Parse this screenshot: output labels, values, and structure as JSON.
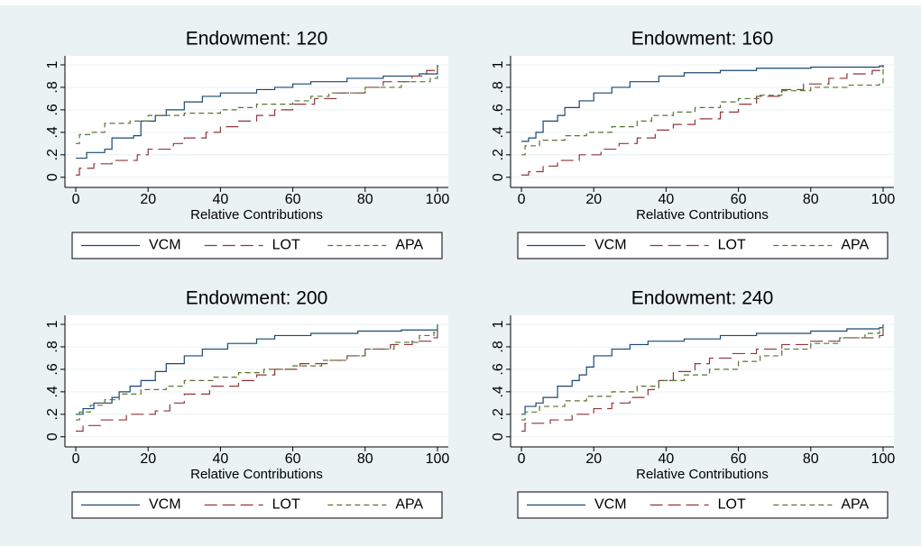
{
  "chart_data": [
    {
      "type": "line",
      "title": "Endowment: 120",
      "xlabel": "Relative Contributions",
      "steps": true,
      "grid": true,
      "legend": "bottom",
      "xlim": [
        -3,
        103
      ],
      "ylim": [
        -0.09,
        1.08
      ],
      "xticks": [
        0,
        20,
        40,
        60,
        80,
        100
      ],
      "yticks": [
        0,
        {
          "value": 0.2,
          "label": ".2"
        },
        {
          "value": 0.4,
          "label": ".4"
        },
        {
          "value": 0.6,
          "label": ".6"
        },
        {
          "value": 0.8,
          "label": ".8"
        },
        1
      ],
      "series": [
        {
          "name": "VCM",
          "color": "#1a476f",
          "linestyle": "solid",
          "x": [
            0,
            3,
            8,
            10,
            16,
            18,
            22,
            25,
            30,
            35,
            40,
            50,
            55,
            60,
            65,
            75,
            85,
            95,
            100
          ],
          "values": [
            0.17,
            0.22,
            0.25,
            0.35,
            0.37,
            0.5,
            0.55,
            0.6,
            0.67,
            0.72,
            0.75,
            0.78,
            0.8,
            0.83,
            0.85,
            0.88,
            0.9,
            0.92,
            1
          ]
        },
        {
          "name": "LOT",
          "color": "#90353b",
          "linestyle": "longdash",
          "x": [
            0,
            1,
            5,
            10,
            17,
            20,
            27,
            30,
            36,
            40,
            45,
            50,
            55,
            60,
            66,
            72,
            80,
            85,
            93,
            97,
            100
          ],
          "values": [
            0.02,
            0.08,
            0.12,
            0.15,
            0.2,
            0.25,
            0.3,
            0.35,
            0.4,
            0.45,
            0.5,
            0.55,
            0.6,
            0.65,
            0.7,
            0.75,
            0.8,
            0.85,
            0.9,
            0.95,
            1
          ]
        },
        {
          "name": "APA",
          "color": "#55752f",
          "linestyle": "dash",
          "x": [
            0,
            1,
            4,
            8,
            15,
            20,
            30,
            40,
            45,
            50,
            60,
            65,
            70,
            80,
            90,
            98,
            100
          ],
          "values": [
            0.3,
            0.38,
            0.4,
            0.48,
            0.5,
            0.55,
            0.57,
            0.6,
            0.62,
            0.65,
            0.68,
            0.72,
            0.75,
            0.8,
            0.85,
            0.88,
            1
          ]
        }
      ]
    },
    {
      "type": "line",
      "title": "Endowment: 160",
      "xlabel": "Relative Contributions",
      "steps": true,
      "grid": true,
      "legend": "bottom",
      "xlim": [
        -3,
        103
      ],
      "ylim": [
        -0.09,
        1.08
      ],
      "xticks": [
        0,
        20,
        40,
        60,
        80,
        100
      ],
      "yticks": [
        0,
        {
          "value": 0.2,
          "label": ".2"
        },
        {
          "value": 0.4,
          "label": ".4"
        },
        {
          "value": 0.6,
          "label": ".6"
        },
        {
          "value": 0.8,
          "label": ".8"
        },
        1
      ],
      "series": [
        {
          "name": "VCM",
          "color": "#1a476f",
          "linestyle": "solid",
          "x": [
            0,
            2,
            4,
            6,
            10,
            12,
            16,
            20,
            25,
            30,
            38,
            45,
            55,
            65,
            80,
            99,
            100
          ],
          "values": [
            0.32,
            0.35,
            0.4,
            0.5,
            0.55,
            0.62,
            0.68,
            0.75,
            0.8,
            0.85,
            0.9,
            0.93,
            0.95,
            0.97,
            0.98,
            0.99,
            1
          ]
        },
        {
          "name": "LOT",
          "color": "#90353b",
          "linestyle": "longdash",
          "x": [
            0,
            2,
            6,
            10,
            16,
            22,
            27,
            32,
            37,
            42,
            48,
            55,
            60,
            65,
            72,
            78,
            85,
            90,
            97,
            100
          ],
          "values": [
            0.02,
            0.05,
            0.1,
            0.15,
            0.2,
            0.25,
            0.3,
            0.35,
            0.42,
            0.47,
            0.52,
            0.58,
            0.65,
            0.72,
            0.78,
            0.83,
            0.88,
            0.92,
            0.95,
            1
          ]
        },
        {
          "name": "APA",
          "color": "#55752f",
          "linestyle": "dash",
          "x": [
            0,
            1,
            5,
            12,
            18,
            25,
            32,
            36,
            42,
            48,
            55,
            60,
            66,
            72,
            80,
            90,
            99,
            100
          ],
          "values": [
            0.2,
            0.28,
            0.33,
            0.37,
            0.4,
            0.45,
            0.5,
            0.55,
            0.58,
            0.62,
            0.67,
            0.7,
            0.73,
            0.77,
            0.8,
            0.82,
            0.84,
            1
          ]
        }
      ]
    },
    {
      "type": "line",
      "title": "Endowment: 200",
      "xlabel": "Relative Contributions",
      "steps": true,
      "grid": true,
      "legend": "bottom",
      "xlim": [
        -3,
        103
      ],
      "ylim": [
        -0.09,
        1.08
      ],
      "xticks": [
        0,
        20,
        40,
        60,
        80,
        100
      ],
      "yticks": [
        0,
        {
          "value": 0.2,
          "label": ".2"
        },
        {
          "value": 0.4,
          "label": ".4"
        },
        {
          "value": 0.6,
          "label": ".6"
        },
        {
          "value": 0.8,
          "label": ".8"
        },
        1
      ],
      "series": [
        {
          "name": "VCM",
          "color": "#1a476f",
          "linestyle": "solid",
          "x": [
            0,
            2,
            5,
            10,
            12,
            15,
            18,
            22,
            25,
            30,
            35,
            42,
            50,
            55,
            65,
            78,
            90,
            100
          ],
          "values": [
            0.2,
            0.25,
            0.3,
            0.35,
            0.4,
            0.45,
            0.5,
            0.58,
            0.65,
            0.72,
            0.78,
            0.83,
            0.87,
            0.9,
            0.92,
            0.94,
            0.95,
            1
          ]
        },
        {
          "name": "LOT",
          "color": "#90353b",
          "linestyle": "longdash",
          "x": [
            0,
            2,
            7,
            14,
            22,
            26,
            30,
            37,
            45,
            50,
            55,
            62,
            70,
            75,
            80,
            87,
            93,
            99,
            100
          ],
          "values": [
            0.05,
            0.1,
            0.15,
            0.2,
            0.23,
            0.3,
            0.38,
            0.45,
            0.5,
            0.55,
            0.6,
            0.65,
            0.68,
            0.72,
            0.78,
            0.82,
            0.85,
            0.88,
            1
          ]
        },
        {
          "name": "APA",
          "color": "#55752f",
          "linestyle": "dash",
          "x": [
            0,
            1,
            4,
            8,
            12,
            18,
            25,
            30,
            38,
            45,
            52,
            60,
            68,
            75,
            80,
            88,
            95,
            99,
            100
          ],
          "values": [
            0.15,
            0.22,
            0.28,
            0.33,
            0.38,
            0.42,
            0.45,
            0.5,
            0.53,
            0.57,
            0.6,
            0.63,
            0.68,
            0.72,
            0.78,
            0.84,
            0.9,
            0.93,
            1
          ]
        }
      ]
    },
    {
      "type": "line",
      "title": "Endowment: 240",
      "xlabel": "Relative Contributions",
      "steps": true,
      "grid": true,
      "legend": "bottom",
      "xlim": [
        -3,
        103
      ],
      "ylim": [
        -0.09,
        1.08
      ],
      "xticks": [
        0,
        20,
        40,
        60,
        80,
        100
      ],
      "yticks": [
        0,
        {
          "value": 0.2,
          "label": ".2"
        },
        {
          "value": 0.4,
          "label": ".4"
        },
        {
          "value": 0.6,
          "label": ".6"
        },
        {
          "value": 0.8,
          "label": ".8"
        },
        1
      ],
      "series": [
        {
          "name": "VCM",
          "color": "#1a476f",
          "linestyle": "solid",
          "x": [
            0,
            1,
            4,
            6,
            10,
            14,
            16,
            18,
            20,
            25,
            30,
            35,
            45,
            55,
            65,
            80,
            90,
            99,
            100
          ],
          "values": [
            0.2,
            0.27,
            0.3,
            0.35,
            0.45,
            0.5,
            0.55,
            0.62,
            0.72,
            0.78,
            0.82,
            0.85,
            0.87,
            0.9,
            0.92,
            0.94,
            0.96,
            0.97,
            1
          ]
        },
        {
          "name": "LOT",
          "color": "#90353b",
          "linestyle": "longdash",
          "x": [
            0,
            1,
            8,
            14,
            20,
            25,
            30,
            35,
            38,
            42,
            48,
            52,
            58,
            65,
            72,
            80,
            88,
            99,
            100
          ],
          "values": [
            0.05,
            0.12,
            0.15,
            0.2,
            0.25,
            0.3,
            0.35,
            0.42,
            0.5,
            0.58,
            0.65,
            0.7,
            0.74,
            0.78,
            0.82,
            0.85,
            0.88,
            0.9,
            1
          ]
        },
        {
          "name": "APA",
          "color": "#55752f",
          "linestyle": "dash",
          "x": [
            0,
            1,
            5,
            12,
            18,
            25,
            32,
            38,
            45,
            52,
            60,
            66,
            72,
            80,
            88,
            95,
            99,
            100
          ],
          "values": [
            0.15,
            0.22,
            0.27,
            0.32,
            0.36,
            0.4,
            0.45,
            0.5,
            0.55,
            0.6,
            0.67,
            0.72,
            0.78,
            0.83,
            0.88,
            0.92,
            0.94,
            1
          ]
        }
      ]
    }
  ]
}
